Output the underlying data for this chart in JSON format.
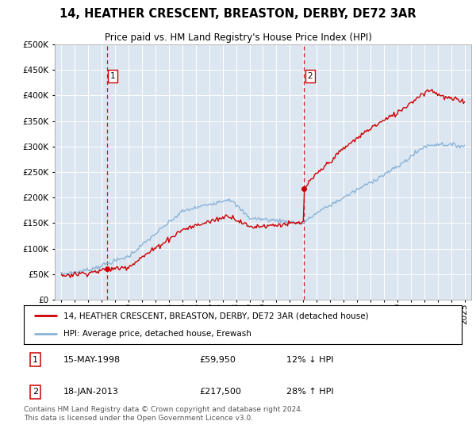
{
  "title": "14, HEATHER CRESCENT, BREASTON, DERBY, DE72 3AR",
  "subtitle": "Price paid vs. HM Land Registry's House Price Index (HPI)",
  "sale1_date_num": 1998.37,
  "sale1_price": 59950,
  "sale2_date_num": 2013.05,
  "sale2_price": 217500,
  "hpi_color": "#8ab4d8",
  "price_color": "#cc0000",
  "dashed_color": "#cc0000",
  "background_color": "#dce6f1",
  "legend1": "14, HEATHER CRESCENT, BREASTON, DERBY, DE72 3AR (detached house)",
  "legend2": "HPI: Average price, detached house, Erewash",
  "footer": "Contains HM Land Registry data © Crown copyright and database right 2024.\nThis data is licensed under the Open Government Licence v3.0.",
  "ylim": [
    0,
    500000
  ],
  "yticks": [
    0,
    50000,
    100000,
    150000,
    200000,
    250000,
    300000,
    350000,
    400000,
    450000,
    500000
  ],
  "xlim_start": 1994.5,
  "xlim_end": 2025.5
}
